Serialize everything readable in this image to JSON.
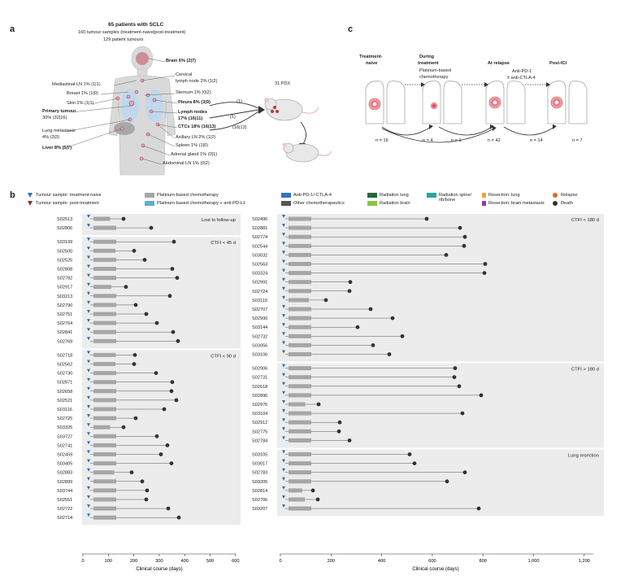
{
  "panel_a": {
    "letter": "a",
    "header1": "65 patients with SCLC",
    "header2": "160 tumour samples (treatment-naive|post-treatment)",
    "header3": "129 patient tumours",
    "sites_left": [
      {
        "text": "Mediastinal LN 1% (1|1)",
        "bold": false
      },
      {
        "text": "Breast 1% (1|0)",
        "bold": false
      },
      {
        "text": "Skin 1% (1|1)",
        "bold": false
      },
      {
        "text": "Primary tumour",
        "bold": true
      },
      {
        "text": "30% (32|16)",
        "bold": false
      },
      {
        "text": "Lung metastasis",
        "bold": false
      },
      {
        "text": "4% (3|3)",
        "bold": false
      },
      {
        "text": "Liver 8% (5|7)",
        "bold": true
      }
    ],
    "sites_right": [
      {
        "text": "Brain 6% (2|7)",
        "bold": true
      },
      {
        "text": "Cervical",
        "bold": false
      },
      {
        "text": "lymph node 2% (1|2)",
        "bold": false
      },
      {
        "text": "Sternum 1% (0|2)",
        "bold": false
      },
      {
        "text": "Pleura 8% (3|9)",
        "bold": true
      },
      {
        "text": "Lymph nodes",
        "bold": true
      },
      {
        "text": "17% (16|11)",
        "bold": true
      },
      {
        "text": "CTCs 18% (16|13)",
        "bold": true
      },
      {
        "text": "Axillary LN 2% (1|2)",
        "bold": false
      },
      {
        "text": "Spleen 1% (1|0)",
        "bold": false
      },
      {
        "text": "Adrenal gland 1% (0|1)",
        "bold": false
      },
      {
        "text": "Abdominal LN 1% (0|2)",
        "bold": false
      }
    ],
    "pdx_label": "31 PDX",
    "arrow_labels": [
      "(1)",
      "(1)",
      "(16|13)"
    ]
  },
  "panel_c": {
    "letter": "c",
    "stages": [
      "Treatment-",
      "naive",
      "During",
      "treatment",
      "At relapse",
      "Post-ICI"
    ],
    "chemo_label1": "Platinum-based",
    "chemo_label2": "chemotherapy",
    "ici_label1": "Anti-PD-1",
    "ici_label2": "± anti-CTLA-4",
    "counts": [
      "n = 16",
      "n = 4",
      "n = 1",
      "n = 42",
      "n = 14",
      "n = 7"
    ]
  },
  "panel_b": {
    "letter": "b",
    "legend": [
      {
        "kind": "tri",
        "color": "#2e6fb7",
        "label": "Tumour sample: treatment-naive"
      },
      {
        "kind": "tri",
        "color": "#9b2a2a",
        "label": "Tumour sample: post-treatment"
      },
      {
        "kind": "sw",
        "color": "#a6a6a6",
        "label": "Platinum-based chemotherapy"
      },
      {
        "kind": "sw",
        "color": "#5aaee0",
        "label": "Platinum-based chemotherapy + anti-PD-L1"
      },
      {
        "kind": "sw",
        "color": "#2f74c8",
        "label": "Anti-PD-1/-CTLA-4"
      },
      {
        "kind": "sw",
        "color": "#555555",
        "label": "Other chemotherapeutics"
      },
      {
        "kind": "sw",
        "color": "#1f6a3a",
        "label": "Radiation lung"
      },
      {
        "kind": "sw",
        "color": "#8bc34a",
        "label": "Radiation brain"
      },
      {
        "kind": "sw",
        "color": "#2aa6a0",
        "label": "Radiation spine/ rib/bone"
      },
      {
        "kind": "sw",
        "color": "#f5a23a",
        "label": "Resection: lung"
      },
      {
        "kind": "sw",
        "color": "#8e3fa0",
        "label": "Resection: brain metastasis"
      },
      {
        "kind": "dot",
        "color": "#e2672a",
        "label": "Relapse"
      },
      {
        "kind": "dot",
        "color": "#333333",
        "label": "Death"
      }
    ],
    "left_groups": [
      {
        "title": "Lost to follow-up",
        "rows": [
          "S02513",
          "S02806"
        ]
      },
      {
        "title": "CTFI < 45 d",
        "rows": [
          "S03199",
          "S02500",
          "S02525",
          "S02808",
          "S02782",
          "S02917",
          "S03213",
          "S02790",
          "S02751",
          "S02764",
          "S02841",
          "S02769"
        ]
      },
      {
        "title": "CTFI < 90 d",
        "rows": [
          "S02718",
          "S02562",
          "S02730",
          "S02871",
          "S02658",
          "S02521",
          "S03116",
          "S02725",
          "S03325",
          "S03727",
          "S02741",
          "S02459",
          "S03405",
          "S02883",
          "S02899",
          "S03744",
          "S02551",
          "S02722",
          "S02714"
        ]
      }
    ],
    "right_groups": [
      {
        "title": "CTFI < 180 d",
        "rows": [
          "S02496",
          "S02881",
          "S02774",
          "S02544",
          "S03032",
          "S02563",
          "S03324",
          "S02991",
          "S02724",
          "S03119",
          "S02707",
          "S02990",
          "S03144",
          "S02732",
          "S03056",
          "S03106"
        ]
      },
      {
        "title": "CTFI > 180 d",
        "rows": [
          "S02906",
          "S02731",
          "S02618",
          "S02896",
          "S02976",
          "S03104",
          "S02912",
          "S02775",
          "S02784"
        ]
      },
      {
        "title": "Lung resection",
        "rows": [
          "S03105",
          "S03017",
          "S02783",
          "S03205",
          "S02814",
          "S02706",
          "S03207"
        ]
      }
    ],
    "left_axis": {
      "ticks": [
        "0",
        "100",
        "200",
        "300",
        "400",
        "500",
        "600"
      ],
      "label": "Clinical course (days)"
    },
    "right_axis": {
      "ticks": [
        "0",
        "200",
        "400",
        "600",
        "800",
        "1,000",
        "1,200"
      ],
      "label": "Clinical course (days)"
    }
  }
}
